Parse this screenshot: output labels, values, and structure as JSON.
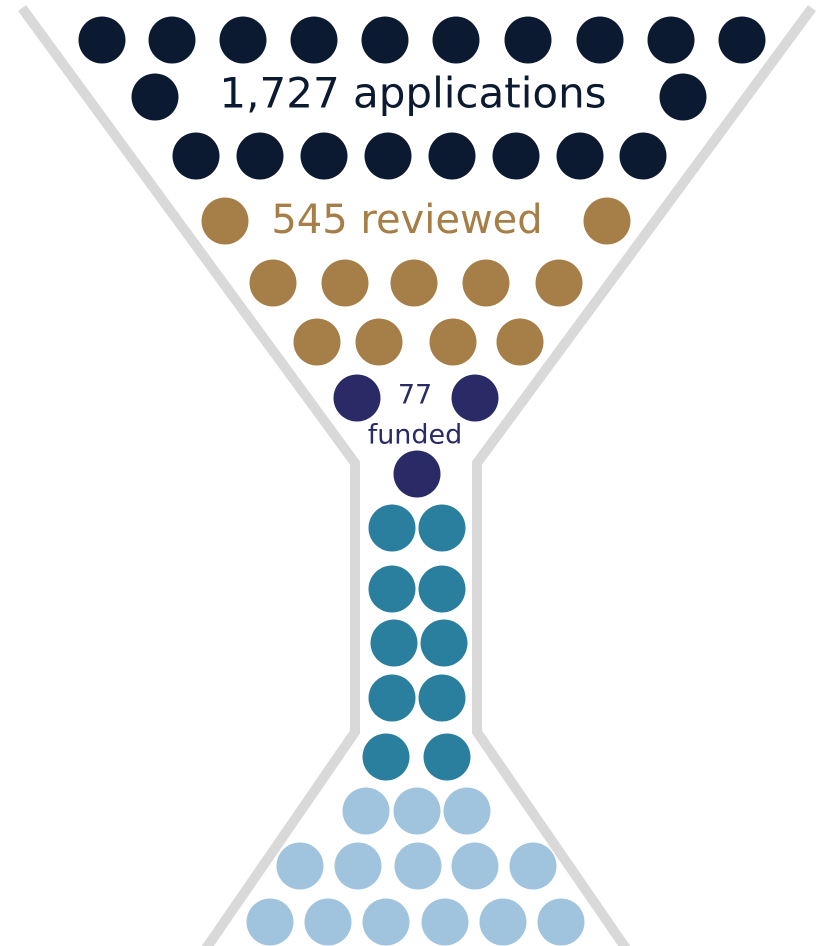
{
  "stages": [
    {
      "text": "1,727 applications"
    },
    {
      "text": "545 reviewed"
    },
    {
      "lines": [
        "77",
        "funded"
      ]
    }
  ]
}
